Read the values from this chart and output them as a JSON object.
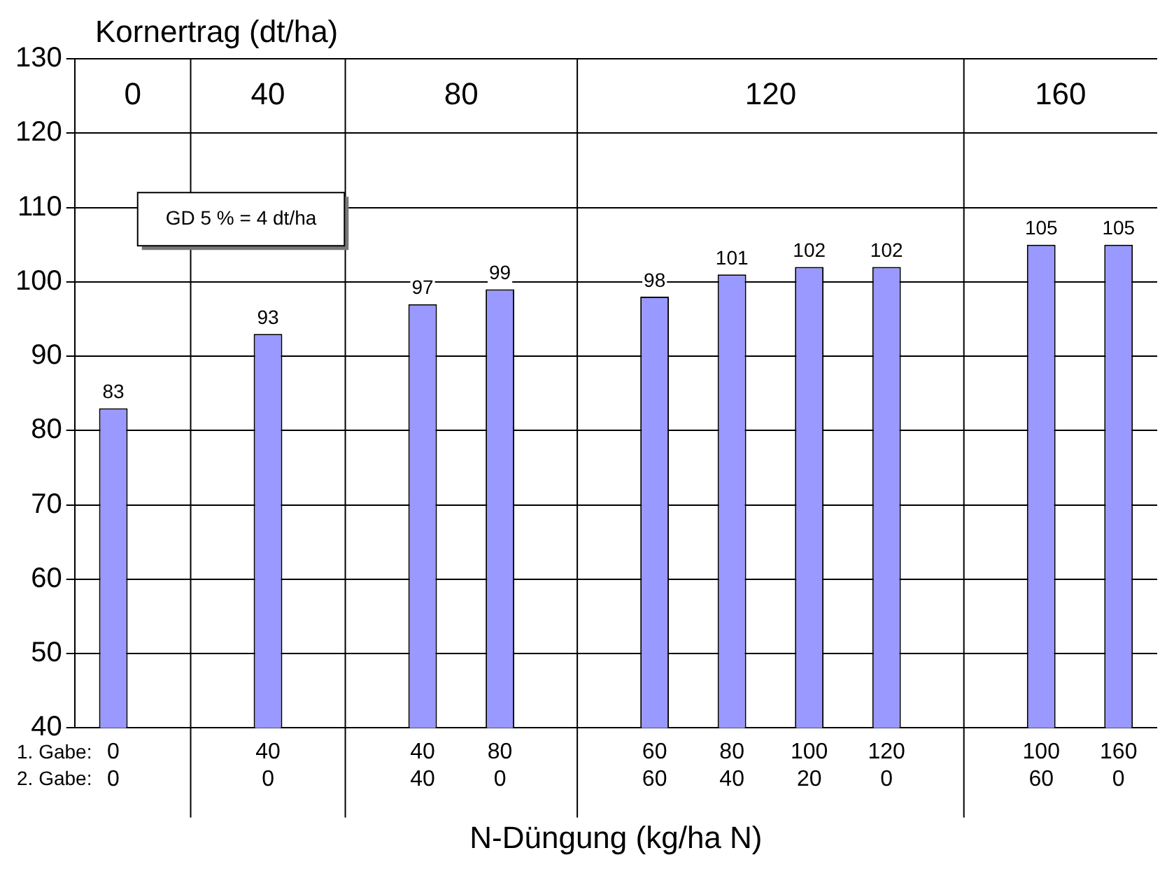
{
  "chart_data": {
    "type": "bar",
    "ylabel": "Kornertrag (dt/ha)",
    "xlabel": "N-Düngung (kg/ha N)",
    "categories": [
      "0\n0",
      null,
      "40\n0",
      null,
      "40\n40",
      "80\n0",
      null,
      "60\n60",
      "80\n40",
      "100\n20",
      "120\n0",
      null,
      "100\n60",
      "160\n0"
    ],
    "values": [
      83,
      null,
      93,
      null,
      97,
      99,
      null,
      98,
      101,
      102,
      102,
      null,
      105,
      105
    ],
    "color": "#9999ff",
    "ylim": [
      40,
      130
    ],
    "yticks": [
      40,
      50,
      60,
      70,
      80,
      90,
      100,
      110,
      120,
      130
    ],
    "grid": true,
    "legend": false,
    "data_labels": true,
    "annotations": [
      "0",
      "40",
      "80",
      "120",
      "160",
      "1. Gabe:",
      "2. Gabe:",
      "GD 5 % = 4 dt/ha"
    ]
  }
}
